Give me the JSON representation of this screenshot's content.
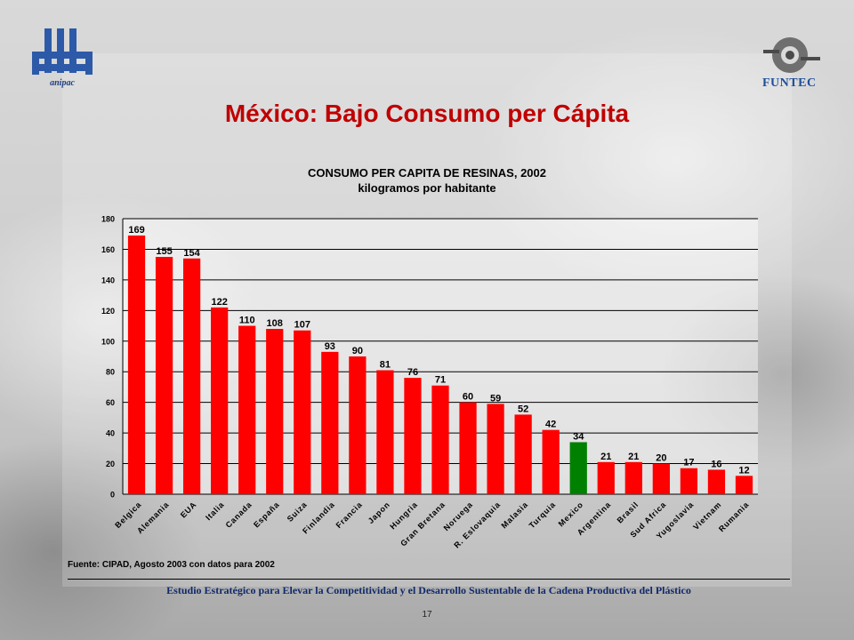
{
  "slide": {
    "title": "México: Bajo Consumo per Cápita",
    "source": "Fuente: CIPAD, Agosto 2003 con datos para 2002",
    "footer": "Estudio Estratégico para Elevar la Competitividad y el Desarrollo Sustentable de la Cadena Productiva del Plástico",
    "page_number": "17",
    "logo_left_text": "anipac",
    "logo_right_text": "FUNTEC"
  },
  "chart_data": {
    "type": "bar",
    "title": "CONSUMO PER CAPITA DE RESINAS, 2002",
    "subtitle": "kilogramos por habitante",
    "categories": [
      "Belgica",
      "Alemania",
      "EUA",
      "Italia",
      "Canada",
      "España",
      "Suiza",
      "Finlandia",
      "Francia",
      "Japon",
      "Hungria",
      "Gran Bretana",
      "Noruega",
      "R. Eslovaquia",
      "Malasia",
      "Turquia",
      "Mexico",
      "Argentina",
      "Brasil",
      "Sud Africa",
      "Yugoslavia",
      "Vietnam",
      "Rumania"
    ],
    "values": [
      169,
      155,
      154,
      122,
      110,
      108,
      107,
      93,
      90,
      81,
      76,
      71,
      60,
      59,
      52,
      42,
      34,
      21,
      21,
      20,
      17,
      16,
      12
    ],
    "highlight_index": 16,
    "ylim": [
      0,
      180
    ],
    "yticks": [
      0,
      20,
      40,
      60,
      80,
      100,
      120,
      140,
      160,
      180
    ],
    "grid": true,
    "colors": {
      "bar": "#ff0000",
      "highlight": "#008000",
      "grid": "#000000"
    }
  }
}
